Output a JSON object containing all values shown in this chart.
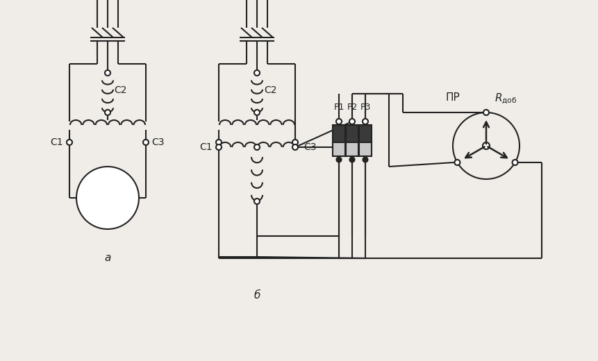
{
  "bg_color": "#f0ede8",
  "line_color": "#222222",
  "lw": 1.5,
  "label_a": "a",
  "label_b": "б",
  "label_C1a": "C1",
  "label_C2a": "C2",
  "label_C3a": "C3",
  "label_C1b": "C1",
  "label_C2b": "C2",
  "label_C3b": "C3",
  "label_P1": "P1",
  "label_P2": "P2",
  "label_P3": "P3",
  "label_PR": "ПР",
  "label_Rdob": "$R_{\\mathrm{\\u0434\\u043e\\u0431}}$",
  "fs": 10,
  "fs_small": 9
}
